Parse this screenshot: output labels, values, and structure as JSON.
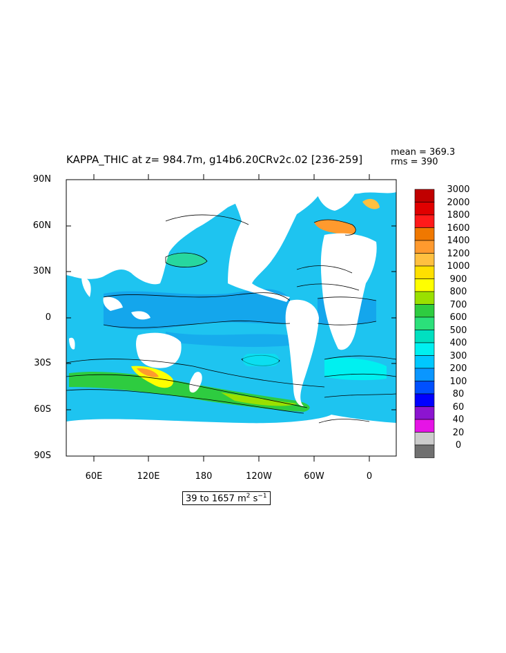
{
  "title": "KAPPA_THIC at z= 984.7m, g14b6.20CRv2c.02  [236-259]",
  "stats": {
    "mean": "mean = 369.3",
    "rms": "rms = 390"
  },
  "lat_labels": [
    "90N",
    "60N",
    "30N",
    "0",
    "30S",
    "60S",
    "90S"
  ],
  "lon_labels": [
    "60E",
    "120E",
    "180",
    "120W",
    "60W",
    "0"
  ],
  "range": {
    "text": "39 to 1657 m",
    "unit_sup1": "2",
    "unit_mid": " s",
    "unit_sup2": "−1"
  },
  "colorbar": {
    "labels": [
      "3000",
      "2000",
      "1800",
      "1600",
      "1400",
      "1200",
      "1000",
      "900",
      "800",
      "700",
      "600",
      "500",
      "400",
      "300",
      "200",
      "100",
      "80",
      "60",
      "40",
      "20",
      "0"
    ],
    "colors": [
      "#c00000",
      "#e00000",
      "#ff1a1a",
      "#f07800",
      "#ff9a2e",
      "#ffc040",
      "#ffe000",
      "#ffff00",
      "#9ae000",
      "#2ecc40",
      "#2be07a",
      "#00e0c0",
      "#00f0f0",
      "#00c8ff",
      "#0a96ff",
      "#0050ff",
      "#0000ff",
      "#8c14d0",
      "#e614e6",
      "#cccccc",
      "#707070"
    ]
  },
  "map_colors": {
    "ocean_base": "#1ec4f0",
    "ocean_deep": "#14a6ec",
    "land": "#ffffff"
  }
}
